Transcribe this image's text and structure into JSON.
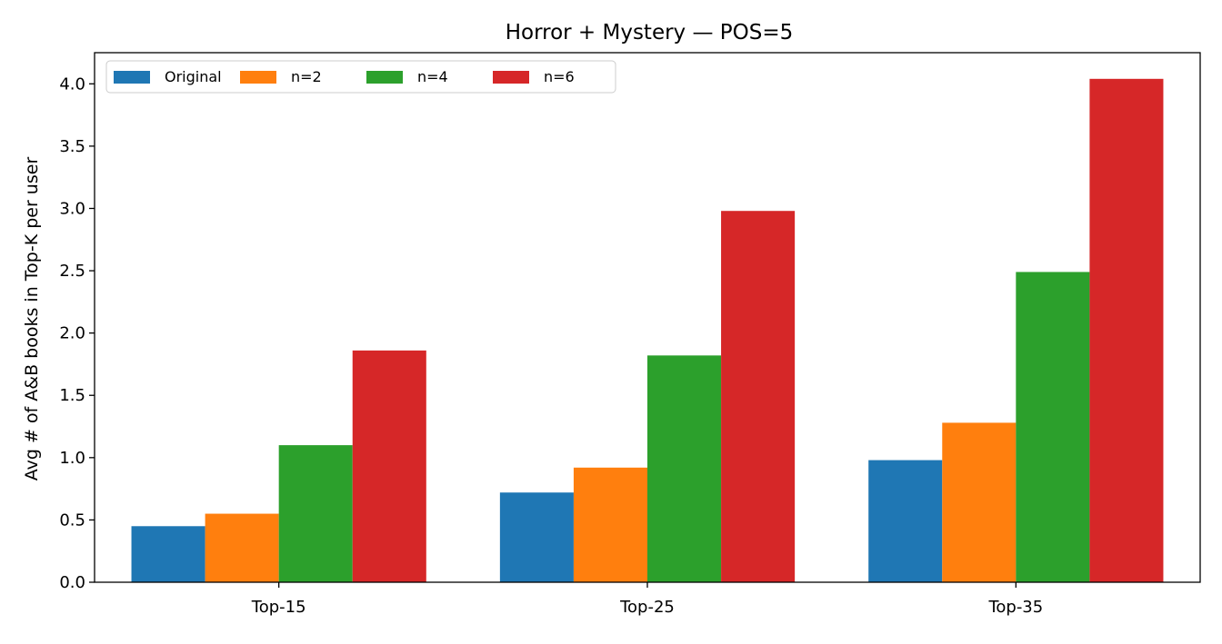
{
  "chart_data": {
    "type": "bar",
    "title": "Horror + Mystery — POS=5",
    "xlabel": "",
    "ylabel": "Avg # of A&B books in Top-K per user",
    "categories": [
      "Top-15",
      "Top-25",
      "Top-35"
    ],
    "series": [
      {
        "name": "Original",
        "color": "#1f77b4",
        "values": [
          0.45,
          0.72,
          0.98
        ]
      },
      {
        "name": "n=2",
        "color": "#ff7f0e",
        "values": [
          0.55,
          0.92,
          1.28
        ]
      },
      {
        "name": "n=4",
        "color": "#2ca02c",
        "values": [
          1.1,
          1.82,
          2.49
        ]
      },
      {
        "name": "n=6",
        "color": "#d62728",
        "values": [
          1.86,
          2.98,
          4.04
        ]
      }
    ],
    "ylim": [
      0,
      4.25
    ],
    "yticks": [
      "0.0",
      "0.5",
      "1.0",
      "1.5",
      "2.0",
      "2.5",
      "3.0",
      "3.5",
      "4.0"
    ],
    "grid": false,
    "legend": "top-left"
  }
}
